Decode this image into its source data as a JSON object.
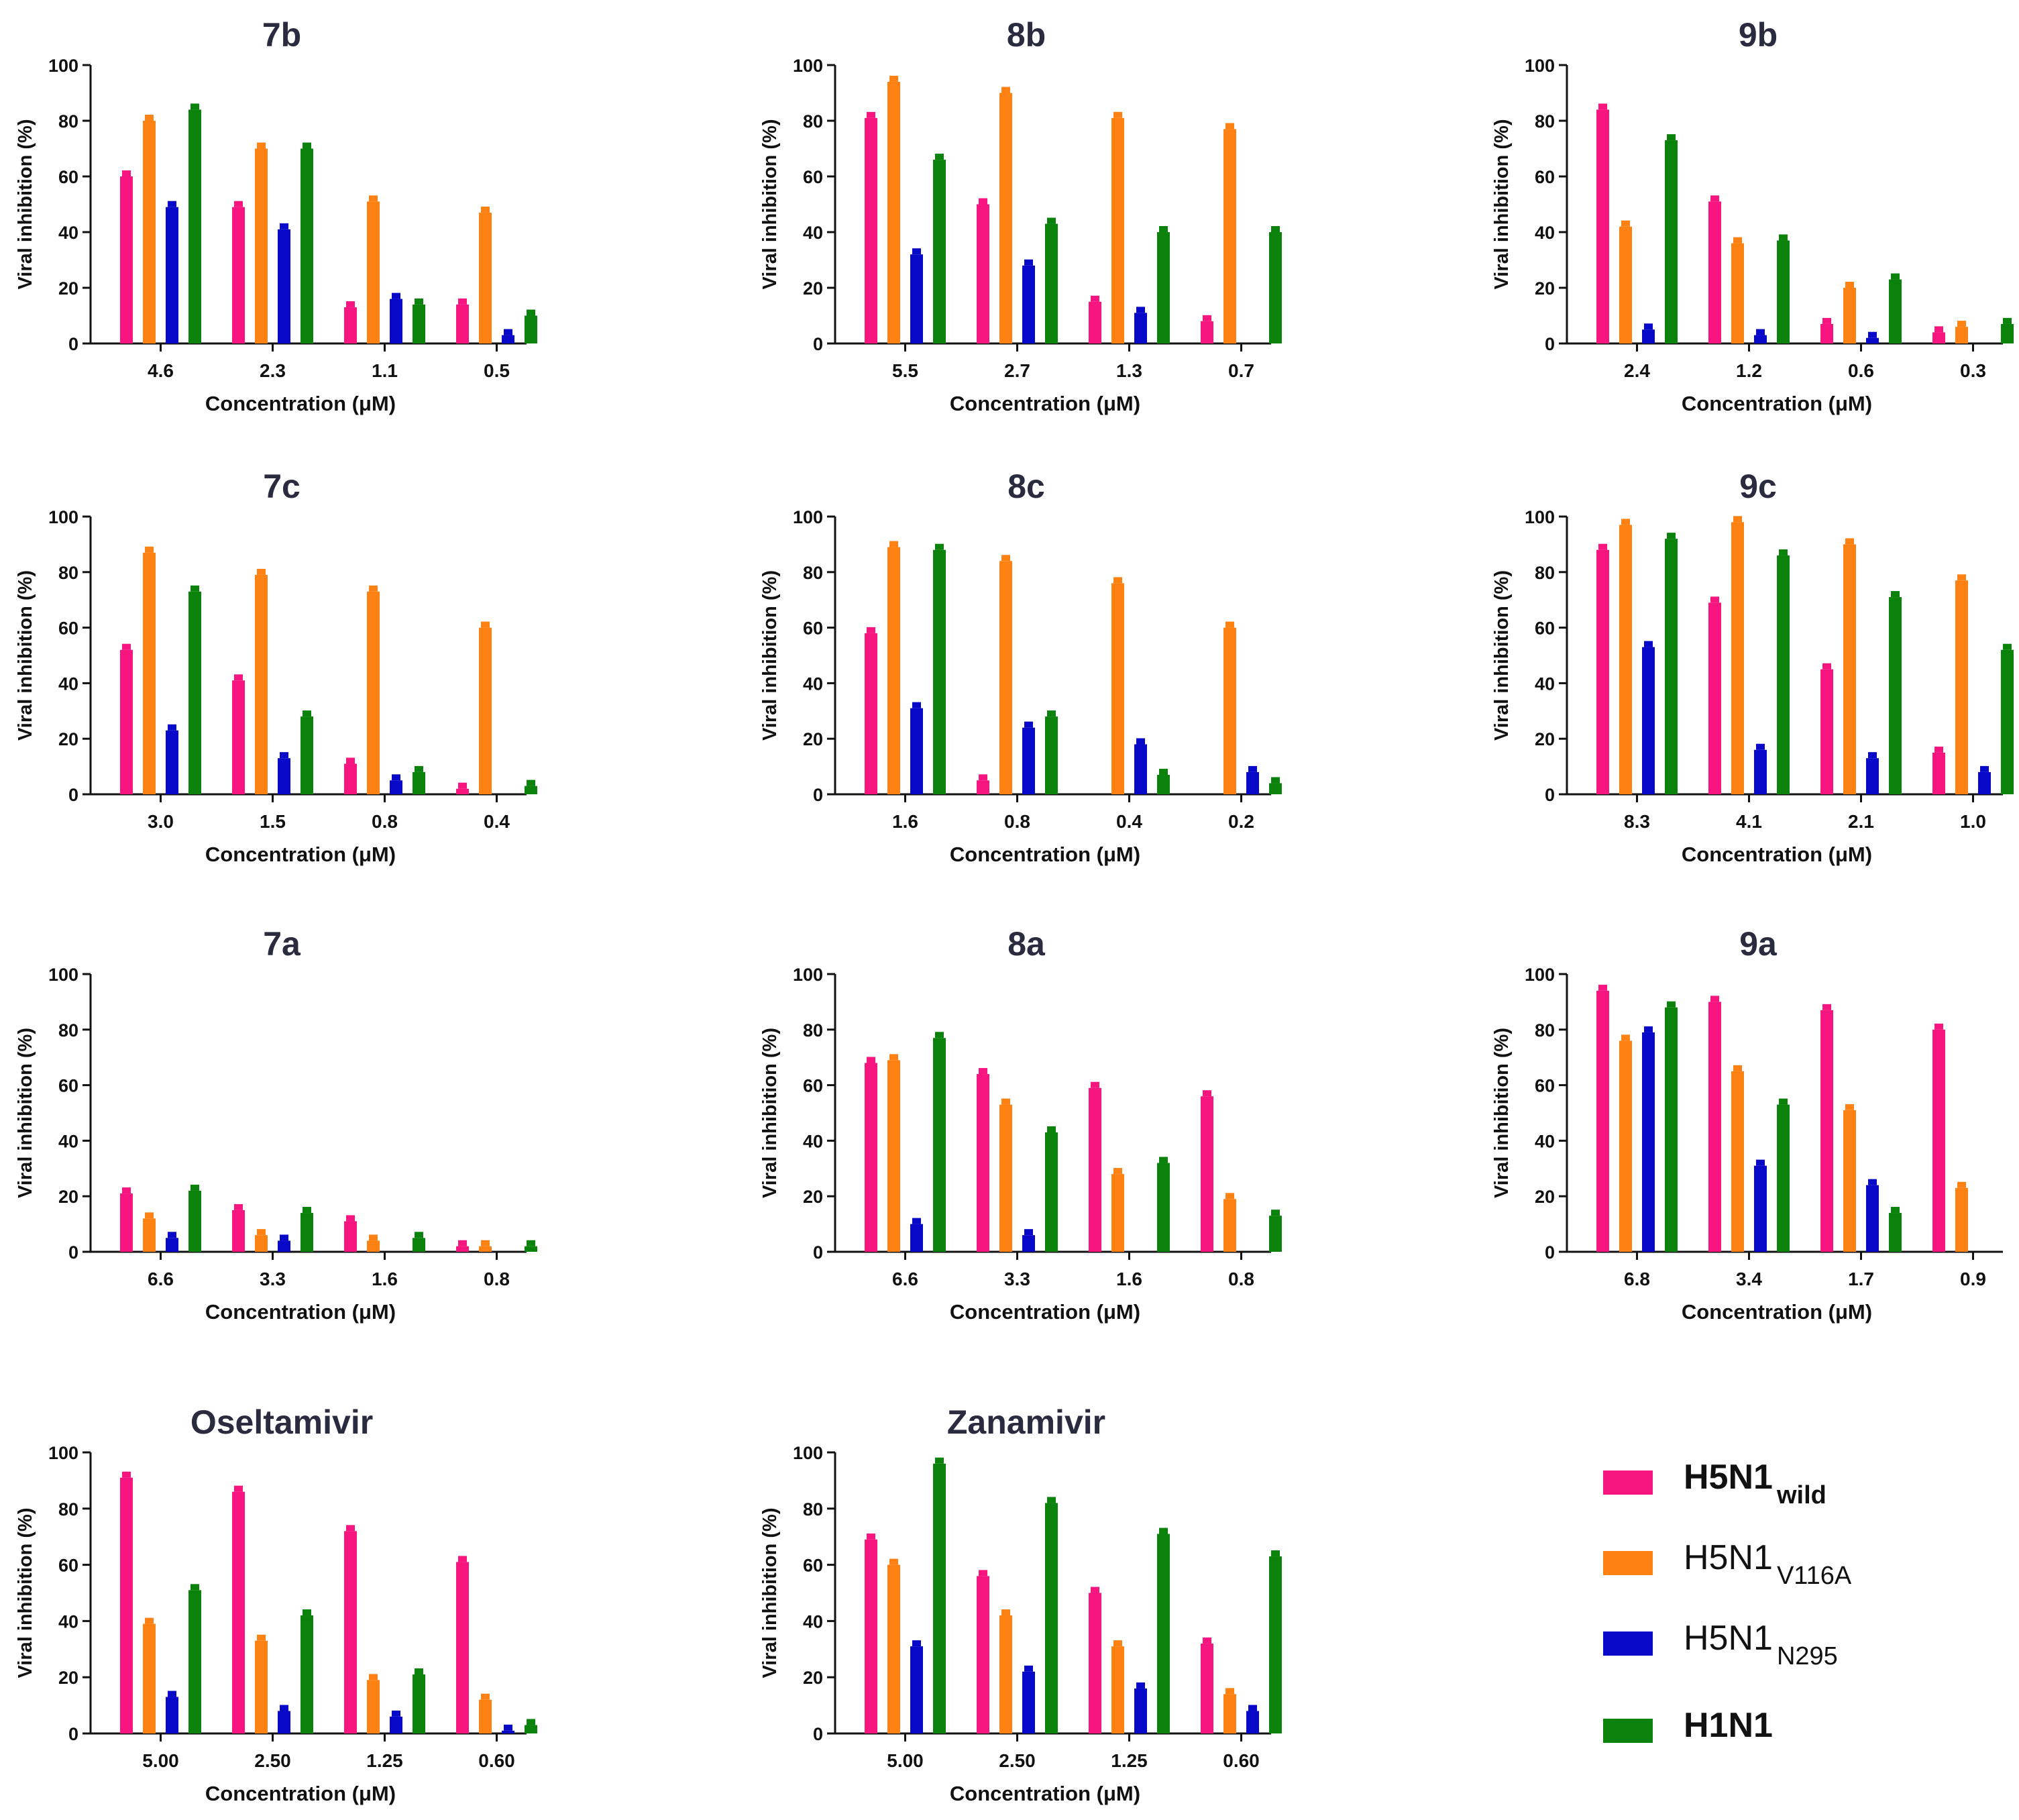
{
  "figure": {
    "ylabel": "Viral inhibition (%)",
    "xlabel": "Concentration (μM)",
    "yticks": [
      "0",
      "20",
      "40",
      "60",
      "80",
      "100"
    ]
  },
  "legend": [
    {
      "name": "H5N1",
      "sub": "wild",
      "color": "#f7157f",
      "bold": true
    },
    {
      "name": "H5N1",
      "sub": "V116A",
      "color": "#fe8213",
      "bold": false
    },
    {
      "name": "H5N1",
      "sub": "N295",
      "color": "#0808c8",
      "bold": false
    },
    {
      "name": "H1N1",
      "sub": "",
      "color": "#0b820b",
      "bold": true
    }
  ],
  "chart_data": [
    {
      "type": "bar",
      "title": "7b",
      "xlabel": "Concentration (μM)",
      "ylabel": "Viral inhibition (%)",
      "ylim": [
        0,
        100
      ],
      "categories": [
        "4.6",
        "2.3",
        "1.1",
        "0.5"
      ],
      "series": [
        {
          "name": "H5N1 wild",
          "values": [
            60,
            49,
            13,
            14
          ]
        },
        {
          "name": "H5N1 V116A",
          "values": [
            80,
            70,
            51,
            47
          ]
        },
        {
          "name": "H5N1 N295",
          "values": [
            49,
            41,
            16,
            3
          ]
        },
        {
          "name": "H1N1",
          "values": [
            84,
            70,
            14,
            10
          ]
        }
      ]
    },
    {
      "type": "bar",
      "title": "8b",
      "xlabel": "Concentration (μM)",
      "ylabel": "Viral inhibition (%)",
      "ylim": [
        0,
        100
      ],
      "categories": [
        "5.5",
        "2.7",
        "1.3",
        "0.7"
      ],
      "series": [
        {
          "name": "H5N1 wild",
          "values": [
            81,
            50,
            15,
            8
          ]
        },
        {
          "name": "H5N1 V116A",
          "values": [
            94,
            90,
            81,
            77
          ]
        },
        {
          "name": "H5N1 N295",
          "values": [
            32,
            28,
            11,
            0
          ]
        },
        {
          "name": "H1N1",
          "values": [
            66,
            43,
            40,
            40
          ]
        }
      ]
    },
    {
      "type": "bar",
      "title": "9b",
      "xlabel": "Concentration (μM)",
      "ylabel": "Viral inhibition (%)",
      "ylim": [
        0,
        100
      ],
      "categories": [
        "2.4",
        "1.2",
        "0.6",
        "0.3"
      ],
      "series": [
        {
          "name": "H5N1 wild",
          "values": [
            84,
            51,
            7,
            4
          ]
        },
        {
          "name": "H5N1 V116A",
          "values": [
            42,
            36,
            20,
            6
          ]
        },
        {
          "name": "H5N1 N295",
          "values": [
            5,
            3,
            2,
            0
          ]
        },
        {
          "name": "H1N1",
          "values": [
            73,
            37,
            23,
            7
          ]
        }
      ]
    },
    {
      "type": "bar",
      "title": "7c",
      "xlabel": "Concentration (μM)",
      "ylabel": "Viral inhibition (%)",
      "ylim": [
        0,
        100
      ],
      "categories": [
        "3.0",
        "1.5",
        "0.8",
        "0.4"
      ],
      "series": [
        {
          "name": "H5N1 wild",
          "values": [
            52,
            41,
            11,
            2
          ]
        },
        {
          "name": "H5N1 V116A",
          "values": [
            87,
            79,
            73,
            60
          ]
        },
        {
          "name": "H5N1 N295",
          "values": [
            23,
            13,
            5,
            0
          ]
        },
        {
          "name": "H1N1",
          "values": [
            73,
            28,
            8,
            3
          ]
        }
      ]
    },
    {
      "type": "bar",
      "title": "8c",
      "xlabel": "Concentration (μM)",
      "ylabel": "Viral inhibition (%)",
      "ylim": [
        0,
        100
      ],
      "categories": [
        "1.6",
        "0.8",
        "0.4",
        "0.2"
      ],
      "series": [
        {
          "name": "H5N1 wild",
          "values": [
            58,
            5,
            0,
            0
          ]
        },
        {
          "name": "H5N1 V116A",
          "values": [
            89,
            84,
            76,
            60
          ]
        },
        {
          "name": "H5N1 N295",
          "values": [
            31,
            24,
            18,
            8
          ]
        },
        {
          "name": "H1N1",
          "values": [
            88,
            28,
            7,
            4
          ]
        }
      ]
    },
    {
      "type": "bar",
      "title": "9c",
      "xlabel": "Concentration (μM)",
      "ylabel": "Viral inhibition (%)",
      "ylim": [
        0,
        100
      ],
      "categories": [
        "8.3",
        "4.1",
        "2.1",
        "1.0"
      ],
      "series": [
        {
          "name": "H5N1 wild",
          "values": [
            88,
            69,
            45,
            15
          ]
        },
        {
          "name": "H5N1 V116A",
          "values": [
            97,
            98,
            90,
            77
          ]
        },
        {
          "name": "H5N1 N295",
          "values": [
            53,
            16,
            13,
            8
          ]
        },
        {
          "name": "H1N1",
          "values": [
            92,
            86,
            71,
            52
          ]
        }
      ]
    },
    {
      "type": "bar",
      "title": "7a",
      "xlabel": "Concentration (μM)",
      "ylabel": "Viral inhibition (%)",
      "ylim": [
        0,
        100
      ],
      "categories": [
        "6.6",
        "3.3",
        "1.6",
        "0.8"
      ],
      "series": [
        {
          "name": "H5N1 wild",
          "values": [
            21,
            15,
            11,
            2
          ]
        },
        {
          "name": "H5N1 V116A",
          "values": [
            12,
            6,
            4,
            2
          ]
        },
        {
          "name": "H5N1 N295",
          "values": [
            5,
            4,
            0,
            0
          ]
        },
        {
          "name": "H1N1",
          "values": [
            22,
            14,
            5,
            2
          ]
        }
      ]
    },
    {
      "type": "bar",
      "title": "8a",
      "xlabel": "Concentration (μM)",
      "ylabel": "Viral inhibition (%)",
      "ylim": [
        0,
        100
      ],
      "categories": [
        "6.6",
        "3.3",
        "1.6",
        "0.8"
      ],
      "series": [
        {
          "name": "H5N1 wild",
          "values": [
            68,
            64,
            59,
            56
          ]
        },
        {
          "name": "H5N1 V116A",
          "values": [
            69,
            53,
            28,
            19
          ]
        },
        {
          "name": "H5N1 N295",
          "values": [
            10,
            6,
            0,
            0
          ]
        },
        {
          "name": "H1N1",
          "values": [
            77,
            43,
            32,
            13
          ]
        }
      ]
    },
    {
      "type": "bar",
      "title": "9a",
      "xlabel": "Concentration (μM)",
      "ylabel": "Viral inhibition (%)",
      "ylim": [
        0,
        100
      ],
      "categories": [
        "6.8",
        "3.4",
        "1.7",
        "0.9"
      ],
      "series": [
        {
          "name": "H5N1 wild",
          "values": [
            94,
            90,
            87,
            80
          ]
        },
        {
          "name": "H5N1 V116A",
          "values": [
            76,
            65,
            51,
            23
          ]
        },
        {
          "name": "H5N1 N295",
          "values": [
            79,
            31,
            24,
            0
          ]
        },
        {
          "name": "H1N1",
          "values": [
            88,
            53,
            14,
            0
          ]
        }
      ]
    },
    {
      "type": "bar",
      "title": "Oseltamivir",
      "xlabel": "Concentration (μM)",
      "ylabel": "Viral inhibition (%)",
      "ylim": [
        0,
        100
      ],
      "categories": [
        "5.00",
        "2.50",
        "1.25",
        "0.60"
      ],
      "series": [
        {
          "name": "H5N1 wild",
          "values": [
            91,
            86,
            72,
            61
          ]
        },
        {
          "name": "H5N1 V116A",
          "values": [
            39,
            33,
            19,
            12
          ]
        },
        {
          "name": "H5N1 N295",
          "values": [
            13,
            8,
            6,
            1
          ]
        },
        {
          "name": "H1N1",
          "values": [
            51,
            42,
            21,
            3
          ]
        }
      ]
    },
    {
      "type": "bar",
      "title": "Zanamivir",
      "xlabel": "Concentration (μM)",
      "ylabel": "Viral inhibition (%)",
      "ylim": [
        0,
        100
      ],
      "categories": [
        "5.00",
        "2.50",
        "1.25",
        "0.60"
      ],
      "series": [
        {
          "name": "H5N1 wild",
          "values": [
            69,
            56,
            50,
            32
          ]
        },
        {
          "name": "H5N1 V116A",
          "values": [
            60,
            42,
            31,
            14
          ]
        },
        {
          "name": "H5N1 N295",
          "values": [
            31,
            22,
            16,
            8
          ]
        },
        {
          "name": "H1N1",
          "values": [
            96,
            82,
            71,
            63
          ]
        }
      ]
    }
  ]
}
